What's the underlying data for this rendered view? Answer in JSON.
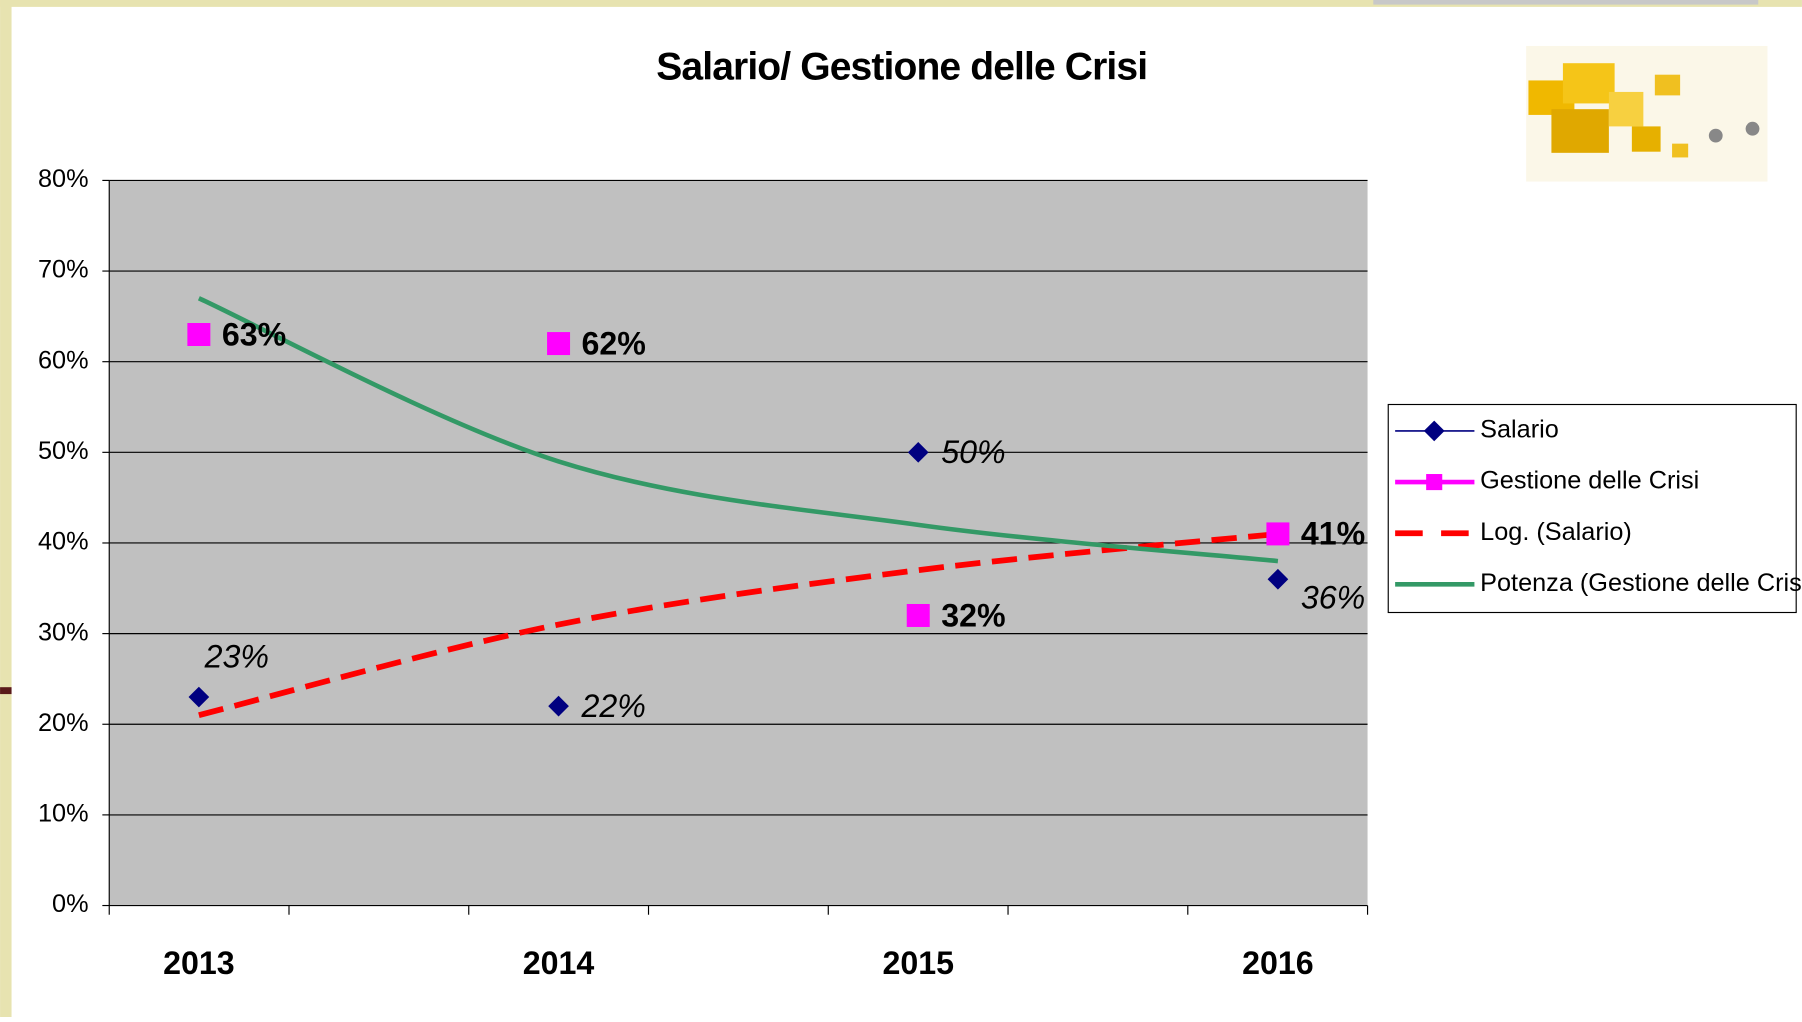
{
  "chart_data": {
    "type": "line",
    "title": "Salario/ Gestione delle Crisi",
    "categories": [
      "2013",
      "2014",
      "2015",
      "2016"
    ],
    "ylim": [
      0,
      80
    ],
    "yticks": [
      {
        "value": 0,
        "label": "0%"
      },
      {
        "value": 10,
        "label": "10%"
      },
      {
        "value": 20,
        "label": "20%"
      },
      {
        "value": 30,
        "label": "30%"
      },
      {
        "value": 40,
        "label": "40%"
      },
      {
        "value": 50,
        "label": "50%"
      },
      {
        "value": 60,
        "label": "60%"
      },
      {
        "value": 70,
        "label": "70%"
      },
      {
        "value": 80,
        "label": "80%"
      }
    ],
    "grid": true,
    "legend": "right",
    "series": [
      {
        "name": "Salario",
        "color": "#000080",
        "marker": "diamond",
        "values": [
          23,
          22,
          50,
          36
        ],
        "value_labels": [
          "23%",
          "22%",
          "50%",
          "36%"
        ]
      },
      {
        "name": "Gestione delle Crisi",
        "color": "#ff00ff",
        "marker": "square",
        "values": [
          63,
          62,
          32,
          41
        ],
        "value_labels": [
          "63%",
          "62%",
          "32%",
          "41%"
        ]
      },
      {
        "name": "Log. (Salario)",
        "color": "#ff0000",
        "style": "dashed",
        "values": [
          21,
          31,
          37,
          41
        ]
      },
      {
        "name": "Potenza (Gestione delle Crisi)",
        "color": "#339966",
        "style": "solid",
        "values": [
          67,
          49,
          42,
          38
        ]
      }
    ]
  }
}
